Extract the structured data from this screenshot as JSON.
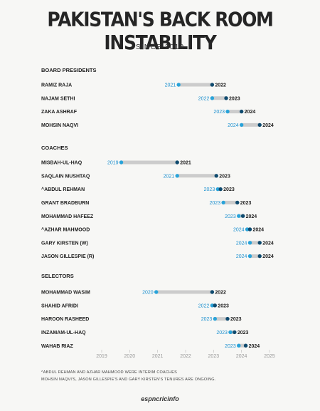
{
  "title": "PAKISTAN'S BACK ROOM INSTABILITY",
  "subtitle": "SINCE 2019",
  "footnotes": [
    "^ABDUL REHMAN AND AZHAR MAHMOOD WERE INTERIM COACHES",
    "MOHSIN NAQVI'S, JASON GILLESPIE'S AND GARY KIRSTEN'S TENURES ARE ONGOING."
  ],
  "brand": "espncricinfo",
  "colors": {
    "start": "#29a3d9",
    "end": "#0f4a6e",
    "bar": "#cccccc",
    "text": "#222222",
    "start_label": "#1a8fcf"
  },
  "chart_data": {
    "type": "range",
    "x_ticks": [
      "2019",
      "2020",
      "2021",
      "2022",
      "2023",
      "2024",
      "2025"
    ],
    "xlim": [
      2019,
      2025
    ],
    "groups": [
      {
        "name": "BOARD PRESIDENTS",
        "rows": [
          {
            "name": "RAMIZ RAJA",
            "start": 2021.75,
            "end": 2022.95,
            "start_label": "2021",
            "end_label": "2022"
          },
          {
            "name": "NAJAM SETHI",
            "start": 2022.95,
            "end": 2023.45,
            "start_label": "2022",
            "end_label": "2023"
          },
          {
            "name": "ZAKA ASHRAF",
            "start": 2023.5,
            "end": 2024.0,
            "start_label": "2023",
            "end_label": "2024"
          },
          {
            "name": "MOHSIN NAQVI",
            "start": 2024.0,
            "end": 2024.65,
            "start_label": "2024",
            "end_label": "2024"
          }
        ]
      },
      {
        "name": "COACHES",
        "rows": [
          {
            "name": "MISBAH-UL-HAQ",
            "start": 2019.7,
            "end": 2021.7,
            "start_label": "2019",
            "end_label": "2021"
          },
          {
            "name": "SAQLAIN MUSHTAQ",
            "start": 2021.7,
            "end": 2023.1,
            "start_label": "2021",
            "end_label": "2023"
          },
          {
            "name": "^ABDUL REHMAN",
            "start": 2023.15,
            "end": 2023.25,
            "start_label": "2023",
            "end_label": "2023"
          },
          {
            "name": "GRANT BRADBURN",
            "start": 2023.35,
            "end": 2023.85,
            "start_label": "2023",
            "end_label": "2023"
          },
          {
            "name": "MOHAMMAD HAFEEZ",
            "start": 2023.9,
            "end": 2024.05,
            "start_label": "2023",
            "end_label": "2024"
          },
          {
            "name": "^AZHAR MAHMOOD",
            "start": 2024.2,
            "end": 2024.3,
            "start_label": "2024",
            "end_label": "2024"
          },
          {
            "name": "GARY KIRSTEN (W)",
            "start": 2024.3,
            "end": 2024.65,
            "start_label": "2024",
            "end_label": "2024"
          },
          {
            "name": "JASON GILLESPIE (R)",
            "start": 2024.3,
            "end": 2024.65,
            "start_label": "2024",
            "end_label": "2024"
          }
        ]
      },
      {
        "name": "SELECTORS",
        "rows": [
          {
            "name": "MOHAMMAD WASIM",
            "start": 2020.95,
            "end": 2022.95,
            "start_label": "2020",
            "end_label": "2022"
          },
          {
            "name": "SHAHID AFRIDI",
            "start": 2022.95,
            "end": 2023.05,
            "start_label": "2022",
            "end_label": "2023"
          },
          {
            "name": "HAROON RASHEED",
            "start": 2023.05,
            "end": 2023.5,
            "start_label": "2023",
            "end_label": "2023"
          },
          {
            "name": "INZAMAM-UL-HAQ",
            "start": 2023.6,
            "end": 2023.75,
            "start_label": "2023",
            "end_label": "2023"
          },
          {
            "name": "WAHAB RIAZ",
            "start": 2023.9,
            "end": 2024.15,
            "start_label": "2023",
            "end_label": "2024"
          }
        ]
      }
    ]
  }
}
